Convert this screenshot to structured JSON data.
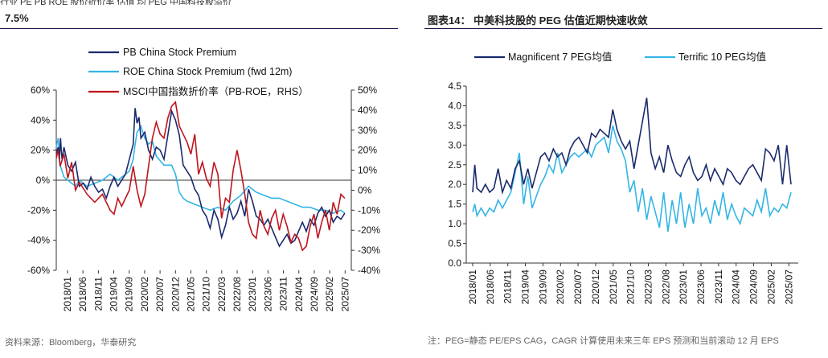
{
  "left": {
    "cut_off_text": "行业    PE    PB ROE 股价折价率    估值 均   PEG 中国科技股溢价    ",
    "title": "7.5%",
    "source": "资料来源：Bloomberg，华泰研究",
    "colors": {
      "pb": "#1a2a6c",
      "roe": "#33b5e5",
      "msci": "#c0141c"
    },
    "chart_data": {
      "type": "line",
      "title": "7.5%",
      "x_tick_labels": [
        "2018/01",
        "2018/06",
        "2018/11",
        "2019/04",
        "2019/09",
        "2020/02",
        "2020/07",
        "2020/12",
        "2021/05",
        "2021/10",
        "2022/03",
        "2022/08",
        "2023/01",
        "2023/06",
        "2023/11",
        "2024/04",
        "2024/09",
        "2025/02",
        "2025/07"
      ],
      "x_range": [
        "2018/01",
        "2025/09"
      ],
      "ylim_left": [
        -60,
        60
      ],
      "ylim_right": [
        -40,
        50
      ],
      "left_tick_labels": [
        "60%",
        "40%",
        "20%",
        "0%",
        "-20%",
        "-40%",
        "-60%"
      ],
      "right_tick_labels": [
        "50%",
        "40%",
        "30%",
        "20%",
        "10%",
        "0%",
        "-10%",
        "-20%",
        "-30%",
        "-40%"
      ],
      "legend": [
        "PB China Stock Premium",
        "ROE China Stock Premium (fwd 12m)",
        "MSCI中国指数折价率（PB-ROE，RHS）"
      ],
      "series": [
        {
          "name": "PB China Stock Premium",
          "axis": "left",
          "x": [
            0,
            0.05,
            0.08,
            0.11,
            0.13,
            0.15,
            0.2,
            0.3,
            0.4,
            0.5,
            0.6,
            0.7,
            0.8,
            0.9,
            1.0,
            1.1,
            1.2,
            1.3,
            1.4,
            1.5,
            1.6,
            1.7,
            1.8,
            1.9,
            2.0,
            2.05,
            2.1,
            2.15,
            2.2,
            2.3,
            2.4,
            2.5,
            2.6,
            2.7,
            2.8,
            2.9,
            3.0,
            3.1,
            3.2,
            3.3,
            3.4,
            3.5,
            3.6,
            3.7,
            3.8,
            3.9,
            4.0,
            4.1,
            4.2,
            4.3,
            4.4,
            4.5,
            4.6,
            4.7,
            4.8,
            4.9,
            5.0,
            5.1,
            5.2,
            5.3,
            5.4,
            5.5,
            5.6,
            5.7,
            5.8,
            5.9,
            6.0,
            6.1,
            6.2,
            6.3,
            6.4,
            6.5,
            6.6,
            6.7,
            6.8,
            6.9,
            7.0,
            7.1,
            7.2,
            7.3,
            7.4,
            7.5
          ],
          "values": [
            18,
            22,
            14,
            28,
            20,
            14,
            22,
            10,
            6,
            12,
            -4,
            -2,
            -6,
            2,
            -4,
            -8,
            -6,
            -12,
            -4,
            2,
            -4,
            0,
            4,
            14,
            24,
            48,
            38,
            42,
            28,
            32,
            20,
            14,
            22,
            20,
            14,
            30,
            46,
            40,
            30,
            10,
            6,
            2,
            -6,
            -10,
            -20,
            -24,
            -32,
            -20,
            -26,
            -38,
            -30,
            -18,
            -26,
            -22,
            -14,
            -24,
            -6,
            -14,
            -24,
            -26,
            -30,
            -26,
            -32,
            -38,
            -44,
            -40,
            -36,
            -42,
            -40,
            -34,
            -28,
            -34,
            -26,
            -30,
            -22,
            -18,
            -24,
            -20,
            -28,
            -24,
            -26,
            -22
          ]
        },
        {
          "name": "ROE China Stock Premium (fwd 12m)",
          "axis": "left",
          "x": [
            0,
            0.05,
            0.1,
            0.2,
            0.3,
            0.4,
            0.5,
            0.6,
            0.8,
            1.0,
            1.2,
            1.4,
            1.6,
            1.8,
            1.9,
            2.0,
            2.05,
            2.1,
            2.2,
            2.3,
            2.4,
            2.5,
            2.6,
            2.8,
            3.0,
            3.1,
            3.2,
            3.3,
            3.4,
            3.6,
            3.8,
            4.0,
            4.2,
            4.4,
            4.6,
            4.8,
            5.0,
            5.2,
            5.4,
            5.6,
            5.8,
            6.0,
            6.2,
            6.4,
            6.6,
            6.8,
            7.0,
            7.2,
            7.4,
            7.5
          ],
          "values": [
            22,
            28,
            10,
            2,
            0,
            -2,
            -4,
            0,
            -4,
            -2,
            0,
            4,
            0,
            4,
            6,
            14,
            24,
            32,
            36,
            28,
            24,
            26,
            16,
            10,
            10,
            4,
            -8,
            -12,
            -14,
            -16,
            -18,
            -20,
            -18,
            -20,
            -14,
            -10,
            -4,
            -8,
            -10,
            -12,
            -12,
            -14,
            -16,
            -18,
            -18,
            -20,
            -20,
            -22,
            -20,
            -22
          ]
        },
        {
          "name": "MSCI中国指数折价率（PB-ROE，RHS）",
          "axis": "right",
          "x": [
            0,
            0.05,
            0.1,
            0.2,
            0.3,
            0.4,
            0.5,
            0.6,
            0.8,
            1.0,
            1.2,
            1.4,
            1.5,
            1.6,
            1.7,
            1.8,
            1.9,
            2.0,
            2.1,
            2.2,
            2.3,
            2.4,
            2.5,
            2.6,
            2.7,
            2.8,
            2.9,
            3.0,
            3.1,
            3.2,
            3.3,
            3.4,
            3.5,
            3.6,
            3.7,
            3.8,
            3.9,
            4.0,
            4.1,
            4.2,
            4.3,
            4.4,
            4.5,
            4.6,
            4.7,
            4.8,
            4.9,
            5.0,
            5.1,
            5.2,
            5.3,
            5.4,
            5.5,
            5.6,
            5.7,
            5.8,
            5.9,
            6.0,
            6.1,
            6.2,
            6.3,
            6.4,
            6.5,
            6.6,
            6.7,
            6.8,
            6.9,
            7.0,
            7.1,
            7.2,
            7.3,
            7.4,
            7.5
          ],
          "values": [
            16,
            20,
            12,
            18,
            6,
            14,
            0,
            4,
            -2,
            -6,
            -2,
            -10,
            -12,
            -4,
            -8,
            -4,
            0,
            12,
            0,
            -8,
            -2,
            12,
            26,
            34,
            28,
            26,
            36,
            42,
            44,
            32,
            28,
            24,
            18,
            28,
            8,
            14,
            6,
            2,
            14,
            8,
            -14,
            -4,
            -6,
            10,
            20,
            10,
            -2,
            -16,
            -22,
            -24,
            -10,
            -18,
            -22,
            -14,
            -10,
            -20,
            -12,
            -18,
            -26,
            -22,
            -24,
            -30,
            -28,
            -18,
            -12,
            -24,
            -16,
            -10,
            -20,
            -6,
            -12,
            -2,
            -4
          ]
        }
      ]
    }
  },
  "right": {
    "title": "图表14：  中美科技股的 PEG 估值近期快速收敛",
    "note": "注：PEG=静态 PE/EPS CAG，CAGR 计算使用未来三年 EPS 预测和当前滚动 12 月 EPS",
    "colors": {
      "mag7": "#1a2a6c",
      "terrific10": "#33b5e5"
    },
    "chart_data": {
      "type": "line",
      "title": "图表14：  中美科技股的 PEG 估值近期快速收敛",
      "x_tick_labels": [
        "2018/01",
        "2018/06",
        "2018/11",
        "2019/04",
        "2019/09",
        "2020/02",
        "2020/07",
        "2020/12",
        "2021/05",
        "2021/10",
        "2022/03",
        "2022/08",
        "2023/01",
        "2023/06",
        "2023/11",
        "2024/04",
        "2024/09",
        "2025/02",
        "2025/07"
      ],
      "x_range": [
        "2018/01",
        "2025/09"
      ],
      "ylim": [
        0,
        4.5
      ],
      "y_tick_labels": [
        "4.5",
        "4.0",
        "3.5",
        "3.0",
        "2.5",
        "2.0",
        "1.5",
        "1.0",
        "0.5",
        "0.0"
      ],
      "legend": [
        "Magnificent 7 PEG均值",
        "Terrific 10 PEG均值"
      ],
      "series": [
        {
          "name": "Magnificent 7 PEG均值",
          "x": [
            0,
            0.05,
            0.1,
            0.2,
            0.3,
            0.4,
            0.5,
            0.6,
            0.7,
            0.8,
            0.9,
            1.0,
            1.1,
            1.2,
            1.3,
            1.4,
            1.5,
            1.6,
            1.7,
            1.8,
            1.9,
            2.0,
            2.1,
            2.2,
            2.3,
            2.4,
            2.5,
            2.6,
            2.7,
            2.8,
            2.9,
            3.0,
            3.1,
            3.2,
            3.3,
            3.4,
            3.5,
            3.6,
            3.7,
            3.8,
            3.9,
            4.0,
            4.1,
            4.2,
            4.3,
            4.4,
            4.5,
            4.6,
            4.7,
            4.8,
            4.9,
            5.0,
            5.1,
            5.2,
            5.3,
            5.4,
            5.5,
            5.6,
            5.7,
            5.8,
            5.9,
            6.0,
            6.1,
            6.2,
            6.3,
            6.4,
            6.5,
            6.6,
            6.7,
            6.8,
            6.9,
            7.0,
            7.1,
            7.2,
            7.3,
            7.4,
            7.5
          ],
          "values": [
            1.8,
            2.5,
            1.9,
            1.8,
            2.0,
            1.8,
            1.9,
            2.4,
            1.8,
            2.1,
            1.9,
            2.4,
            2.6,
            2.0,
            2.4,
            1.9,
            2.3,
            2.7,
            2.8,
            2.6,
            2.9,
            2.7,
            2.8,
            2.5,
            2.9,
            3.1,
            3.2,
            3.0,
            2.8,
            3.3,
            3.2,
            3.4,
            3.3,
            3.2,
            3.9,
            3.4,
            3.1,
            2.9,
            3.1,
            2.4,
            3.0,
            3.6,
            4.2,
            2.8,
            2.4,
            2.7,
            2.3,
            3.0,
            2.6,
            2.3,
            2.2,
            2.5,
            2.7,
            2.3,
            2.1,
            2.2,
            2.5,
            2.1,
            2.4,
            2.2,
            2.0,
            2.4,
            2.3,
            2.1,
            2.0,
            2.2,
            2.4,
            2.5,
            2.3,
            2.1,
            2.9,
            2.8,
            2.6,
            3.0,
            2.0,
            3.0,
            2.0
          ]
        },
        {
          "name": "Terrific 10 PEG均值",
          "x": [
            0,
            0.05,
            0.1,
            0.2,
            0.3,
            0.4,
            0.5,
            0.6,
            0.7,
            0.8,
            0.9,
            1.0,
            1.1,
            1.2,
            1.3,
            1.4,
            1.5,
            1.6,
            1.7,
            1.8,
            1.9,
            2.0,
            2.1,
            2.2,
            2.3,
            2.4,
            2.5,
            2.6,
            2.7,
            2.8,
            2.9,
            3.0,
            3.1,
            3.2,
            3.3,
            3.4,
            3.5,
            3.6,
            3.7,
            3.8,
            3.9,
            4.0,
            4.1,
            4.2,
            4.3,
            4.4,
            4.5,
            4.6,
            4.7,
            4.8,
            4.9,
            5.0,
            5.1,
            5.2,
            5.3,
            5.4,
            5.5,
            5.6,
            5.7,
            5.8,
            5.9,
            6.0,
            6.1,
            6.2,
            6.3,
            6.4,
            6.5,
            6.6,
            6.7,
            6.8,
            6.9,
            7.0,
            7.1,
            7.2,
            7.3,
            7.4,
            7.5
          ],
          "values": [
            1.3,
            1.5,
            1.2,
            1.4,
            1.2,
            1.4,
            1.3,
            1.6,
            1.4,
            1.6,
            1.8,
            2.3,
            2.8,
            1.5,
            2.2,
            1.4,
            1.7,
            2.0,
            2.2,
            2.5,
            2.3,
            2.8,
            2.3,
            2.5,
            2.7,
            2.8,
            2.7,
            2.8,
            2.9,
            2.7,
            3.0,
            3.1,
            3.2,
            2.8,
            3.5,
            3.1,
            2.9,
            2.6,
            1.8,
            2.1,
            1.3,
            1.9,
            1.1,
            1.7,
            1.3,
            0.9,
            1.8,
            0.8,
            1.6,
            1.0,
            1.8,
            0.9,
            1.5,
            1.0,
            1.9,
            1.2,
            1.4,
            1.0,
            1.6,
            1.2,
            1.8,
            1.1,
            1.5,
            1.2,
            1.0,
            1.4,
            1.3,
            1.2,
            1.6,
            1.3,
            1.9,
            1.2,
            1.4,
            1.3,
            1.5,
            1.4,
            1.8
          ]
        }
      ]
    }
  }
}
